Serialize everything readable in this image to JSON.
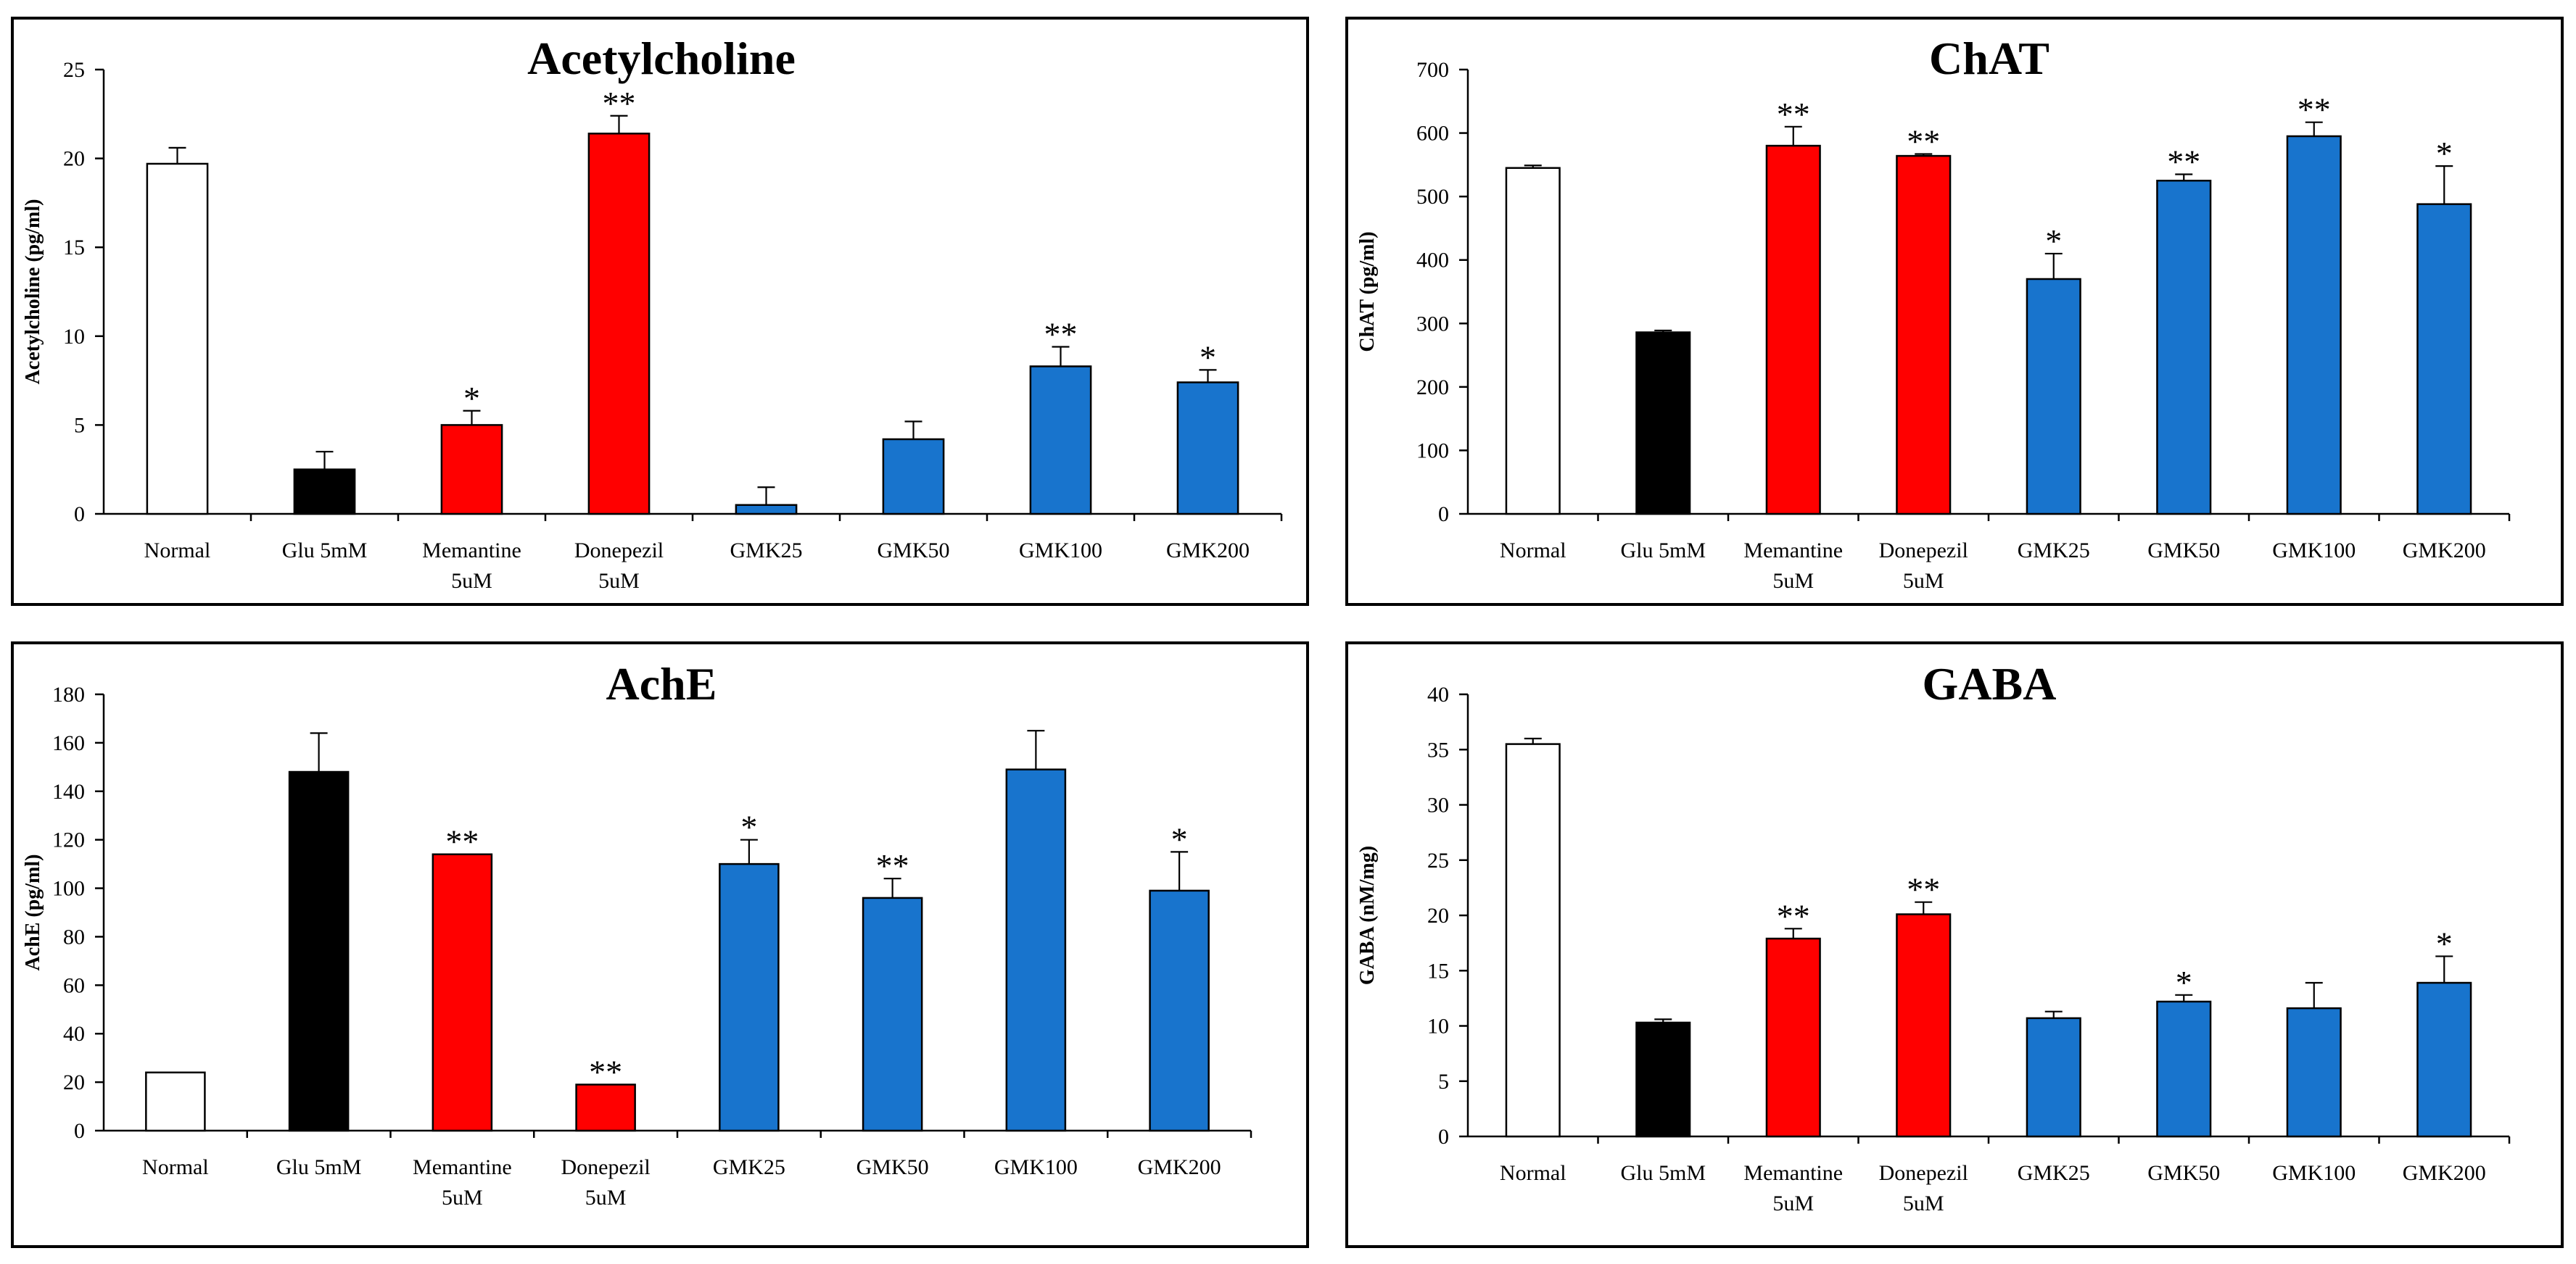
{
  "chart_data": [
    {
      "type": "bar",
      "title": "Acetylcholine",
      "ylabel": "Acetylcholine (pg/ml)",
      "ylim": [
        0,
        25
      ],
      "yticks": [
        0,
        5,
        10,
        15,
        20,
        25
      ],
      "categories": [
        [
          "Normal"
        ],
        [
          "Glu 5mM"
        ],
        [
          "Memantine",
          "5uM"
        ],
        [
          "Donepezil",
          "5uM"
        ],
        [
          "GMK25"
        ],
        [
          "GMK50"
        ],
        [
          "GMK100"
        ],
        [
          "GMK200"
        ]
      ],
      "values": [
        19.7,
        2.5,
        5.0,
        21.4,
        0.5,
        4.2,
        8.3,
        7.4
      ],
      "errors": [
        0.9,
        1.0,
        0.8,
        1.0,
        1.0,
        1.0,
        1.1,
        0.7
      ],
      "significance": [
        "",
        "",
        "*",
        "**",
        "",
        "",
        "**",
        "*"
      ],
      "colors": [
        "#FFFFFF",
        "#000000",
        "#FF0000",
        "#FF0000",
        "#1874CD",
        "#1874CD",
        "#1874CD",
        "#1874CD"
      ]
    },
    {
      "type": "bar",
      "title": "ChAT",
      "ylabel": "ChAT (pg/ml)",
      "ylim": [
        0,
        700
      ],
      "yticks": [
        0,
        100,
        200,
        300,
        400,
        500,
        600,
        700
      ],
      "categories": [
        [
          "Normal"
        ],
        [
          "Glu 5mM"
        ],
        [
          "Memantine",
          "5uM"
        ],
        [
          "Donepezil",
          "5uM"
        ],
        [
          "GMK25"
        ],
        [
          "GMK50"
        ],
        [
          "GMK100"
        ],
        [
          "GMK200"
        ]
      ],
      "values": [
        545,
        286,
        580,
        564,
        370,
        525,
        595,
        488
      ],
      "errors": [
        4,
        3,
        30,
        3,
        40,
        10,
        22,
        60
      ],
      "significance": [
        "",
        "",
        "**",
        "**",
        "*",
        "**",
        "**",
        "*"
      ],
      "colors": [
        "#FFFFFF",
        "#000000",
        "#FF0000",
        "#FF0000",
        "#1874CD",
        "#1874CD",
        "#1874CD",
        "#1874CD"
      ]
    },
    {
      "type": "bar",
      "title": "AchE",
      "ylabel": "AchE  (pg/ml)",
      "ylim": [
        0,
        180
      ],
      "yticks": [
        0,
        20,
        40,
        60,
        80,
        100,
        120,
        140,
        160,
        180
      ],
      "categories": [
        [
          "Normal"
        ],
        [
          "Glu 5mM"
        ],
        [
          "Memantine",
          "5uM"
        ],
        [
          "Donepezil",
          "5uM"
        ],
        [
          "GMK25"
        ],
        [
          "GMK50"
        ],
        [
          "GMK100"
        ],
        [
          "GMK200"
        ]
      ],
      "values": [
        24,
        148,
        114,
        19,
        110,
        96,
        149,
        99
      ],
      "errors": [
        0,
        16,
        0,
        0,
        10,
        8,
        16,
        16
      ],
      "significance": [
        "",
        "",
        "**",
        "**",
        "*",
        "**",
        "",
        "*"
      ],
      "colors": [
        "#FFFFFF",
        "#000000",
        "#FF0000",
        "#FF0000",
        "#1874CD",
        "#1874CD",
        "#1874CD",
        "#1874CD"
      ]
    },
    {
      "type": "bar",
      "title": "GABA",
      "ylabel": "GABA (nM/mg)",
      "ylim": [
        0,
        40
      ],
      "yticks": [
        0,
        5,
        10,
        15,
        20,
        25,
        30,
        35,
        40
      ],
      "categories": [
        [
          "Normal"
        ],
        [
          "Glu 5mM"
        ],
        [
          "Memantine",
          "5uM"
        ],
        [
          "Donepezil",
          "5uM"
        ],
        [
          "GMK25"
        ],
        [
          "GMK50"
        ],
        [
          "GMK100"
        ],
        [
          "GMK200"
        ]
      ],
      "values": [
        35.5,
        10.3,
        17.9,
        20.1,
        10.7,
        12.2,
        11.6,
        13.9
      ],
      "errors": [
        0.5,
        0.3,
        0.9,
        1.1,
        0.6,
        0.6,
        2.3,
        2.4
      ],
      "significance": [
        "",
        "",
        "**",
        "**",
        "",
        "*",
        "",
        "*"
      ],
      "colors": [
        "#FFFFFF",
        "#000000",
        "#FF0000",
        "#FF0000",
        "#1874CD",
        "#1874CD",
        "#1874CD",
        "#1874CD"
      ]
    }
  ]
}
